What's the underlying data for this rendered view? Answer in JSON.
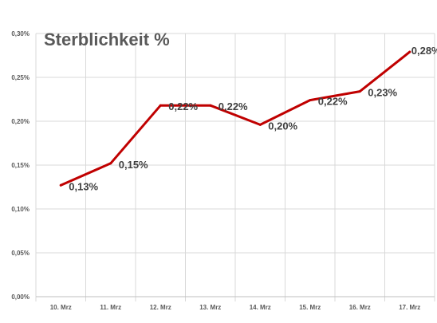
{
  "chart_data": {
    "type": "line",
    "title": "Sterblichkeit %",
    "xlabel": "",
    "ylabel": "",
    "categories": [
      "10. Mrz",
      "11. Mrz",
      "12. Mrz",
      "13. Mrz",
      "14. Mrz",
      "15. Mrz",
      "16. Mrz",
      "17. Mrz"
    ],
    "series": [
      {
        "values": [
          0.127,
          0.152,
          0.218,
          0.218,
          0.196,
          0.224,
          0.234,
          0.279
        ],
        "data_labels": [
          "0,13%",
          "0,15%",
          "0,22%",
          "0,22%",
          "0,20%",
          "0,22%",
          "0,23%",
          "0,28%"
        ],
        "color": "#c00000"
      }
    ],
    "ylim": [
      0,
      0.3
    ],
    "y_ticks": [
      0,
      0.05,
      0.1,
      0.15,
      0.2,
      0.25,
      0.3
    ],
    "y_tick_labels": [
      "0,00%",
      "0,05%",
      "0,10%",
      "0,15%",
      "0,20%",
      "0,25%",
      "0,30%"
    ],
    "grid": true,
    "legend": "none"
  },
  "colors": {
    "line": "#c00000",
    "grid": "#d9d9d9",
    "axis": "#bfbfbf",
    "text": "#595959",
    "data_label": "#404040"
  }
}
